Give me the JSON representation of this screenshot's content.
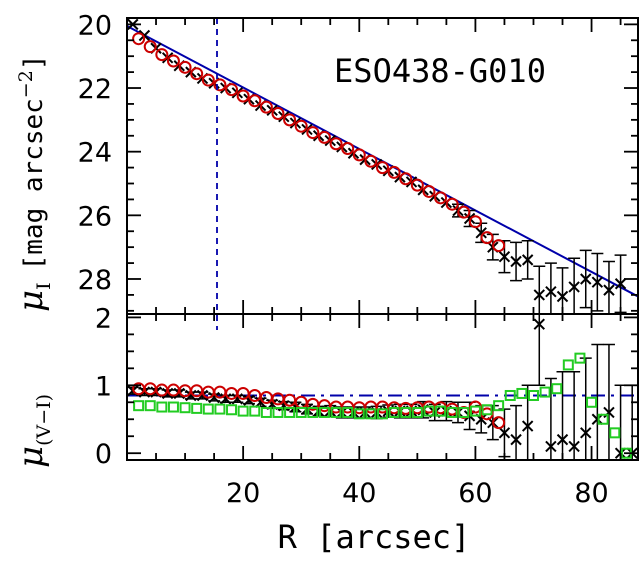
{
  "chart_data": [
    {
      "type": "scatter",
      "panel": "top",
      "annotation": "ESO438-G010",
      "ylabel_symbol": "μ",
      "ylabel_subscript": "I",
      "ylabel_unit": "[mag arcsec",
      "ylabel_unit_exp": "−2",
      "ylabel_unit_close": "]",
      "xlim": [
        0,
        88
      ],
      "ylim": [
        29.1,
        19.8
      ],
      "y_inverted": true,
      "yticks": [
        20,
        22,
        24,
        26,
        28
      ],
      "ytick_labels": [
        "20",
        "22",
        "24",
        "26",
        "28"
      ],
      "fit_line": {
        "x": [
          0,
          88
        ],
        "y": [
          20.05,
          28.55
        ]
      },
      "vertical_marker_x": 15.5,
      "series": [
        {
          "marker": "open-circle",
          "color": "#cc0000",
          "x": [
            2,
            4,
            6,
            8,
            10,
            12,
            14,
            16,
            18,
            20,
            22,
            24,
            26,
            28,
            30,
            32,
            34,
            36,
            38,
            40,
            42,
            44,
            46,
            48,
            50,
            52,
            54,
            56,
            58,
            60,
            62,
            64
          ],
          "y": [
            20.45,
            20.7,
            20.95,
            21.15,
            21.35,
            21.55,
            21.75,
            21.9,
            22.05,
            22.25,
            22.4,
            22.6,
            22.8,
            23.0,
            23.2,
            23.4,
            23.55,
            23.75,
            23.9,
            24.1,
            24.3,
            24.5,
            24.65,
            24.85,
            25.05,
            25.25,
            25.45,
            25.65,
            25.9,
            26.2,
            26.7,
            26.95
          ]
        },
        {
          "marker": "cross",
          "color": "#000000",
          "x": [
            1,
            3,
            5,
            7,
            9,
            11,
            13,
            15,
            17,
            19,
            21,
            23,
            25,
            27,
            29,
            31,
            33,
            35,
            37,
            39,
            41,
            43,
            45,
            47,
            49,
            51,
            53,
            55,
            57,
            59,
            61,
            63,
            65,
            67,
            69,
            71,
            73,
            75,
            77,
            79,
            81,
            83,
            85
          ],
          "y": [
            20.0,
            20.35,
            20.75,
            21.05,
            21.3,
            21.5,
            21.7,
            21.85,
            22.0,
            22.15,
            22.35,
            22.55,
            22.7,
            22.9,
            23.1,
            23.3,
            23.5,
            23.65,
            23.85,
            24.05,
            24.25,
            24.4,
            24.6,
            24.8,
            24.95,
            25.2,
            25.4,
            25.6,
            25.85,
            26.1,
            26.55,
            27.0,
            27.3,
            27.45,
            27.4,
            28.5,
            28.4,
            28.55,
            28.25,
            28.0,
            28.1,
            28.35,
            28.15
          ],
          "yerr": [
            0,
            0,
            0,
            0,
            0,
            0,
            0,
            0,
            0,
            0,
            0,
            0,
            0,
            0,
            0,
            0,
            0,
            0,
            0,
            0,
            0,
            0,
            0,
            0,
            0,
            0,
            0,
            0,
            0.2,
            0.25,
            0.3,
            0.4,
            0.5,
            0.6,
            0.6,
            0.9,
            0.9,
            0.9,
            0.9,
            0.9,
            0.9,
            0.9,
            0.9
          ]
        }
      ]
    },
    {
      "type": "scatter",
      "panel": "bottom",
      "ylabel_symbol": "μ",
      "ylabel_subscript": "(V−I)",
      "xlabel": "R [arcsec]",
      "xlim": [
        0,
        88
      ],
      "ylim": [
        -0.1,
        2.05
      ],
      "yticks": [
        0,
        1,
        2
      ],
      "ytick_labels": [
        "0",
        "1",
        "2"
      ],
      "xticks": [
        20,
        40,
        60,
        80
      ],
      "xtick_labels": [
        "20",
        "40",
        "60",
        "80"
      ],
      "mean_line_y": 0.85,
      "series": [
        {
          "marker": "open-circle",
          "color": "#cc0000",
          "x": [
            2,
            4,
            6,
            8,
            10,
            12,
            14,
            16,
            18,
            20,
            22,
            24,
            26,
            28,
            30,
            32,
            34,
            36,
            38,
            40,
            42,
            44,
            46,
            48,
            50,
            52,
            54,
            56,
            58,
            60,
            62,
            64
          ],
          "y": [
            0.95,
            0.95,
            0.93,
            0.93,
            0.92,
            0.92,
            0.9,
            0.9,
            0.88,
            0.88,
            0.85,
            0.82,
            0.8,
            0.78,
            0.75,
            0.72,
            0.7,
            0.68,
            0.68,
            0.67,
            0.68,
            0.68,
            0.67,
            0.66,
            0.67,
            0.68,
            0.67,
            0.65,
            0.6,
            0.68,
            0.58,
            0.45
          ]
        },
        {
          "marker": "open-square",
          "color": "#22cc22",
          "x": [
            2,
            4,
            6,
            8,
            10,
            12,
            14,
            16,
            18,
            20,
            22,
            24,
            26,
            28,
            30,
            32,
            34,
            36,
            38,
            40,
            42,
            44,
            46,
            48,
            50,
            52,
            54,
            56,
            58,
            60,
            62,
            64,
            66,
            68,
            70,
            72,
            74,
            76,
            78,
            80,
            82,
            84,
            86
          ],
          "y": [
            0.7,
            0.7,
            0.68,
            0.68,
            0.67,
            0.66,
            0.65,
            0.65,
            0.64,
            0.62,
            0.62,
            0.6,
            0.6,
            0.6,
            0.6,
            0.6,
            0.6,
            0.6,
            0.6,
            0.58,
            0.58,
            0.58,
            0.6,
            0.6,
            0.6,
            0.62,
            0.62,
            0.6,
            0.6,
            0.62,
            0.64,
            0.7,
            0.85,
            0.88,
            0.85,
            0.9,
            0.95,
            1.3,
            1.4,
            0.75,
            0.5,
            0.3,
            0.0
          ]
        },
        {
          "marker": "cross",
          "color": "#000000",
          "x": [
            1,
            3,
            5,
            7,
            9,
            11,
            13,
            15,
            17,
            19,
            21,
            23,
            25,
            27,
            29,
            31,
            33,
            35,
            37,
            39,
            41,
            43,
            45,
            47,
            49,
            51,
            53,
            55,
            57,
            59,
            61,
            63,
            65,
            67,
            69,
            71,
            73,
            75,
            77,
            79,
            81,
            83,
            85,
            87
          ],
          "y": [
            0.92,
            0.9,
            0.9,
            0.88,
            0.88,
            0.85,
            0.85,
            0.82,
            0.8,
            0.8,
            0.78,
            0.75,
            0.72,
            0.7,
            0.68,
            0.65,
            0.62,
            0.62,
            0.6,
            0.6,
            0.6,
            0.6,
            0.62,
            0.62,
            0.62,
            0.64,
            0.6,
            0.62,
            0.6,
            0.55,
            0.5,
            0.45,
            0.3,
            0.2,
            0.4,
            1.9,
            0.1,
            0.2,
            0.1,
            0.3,
            0.5,
            0.6,
            0.0,
            0.0
          ],
          "yerr": [
            0.05,
            0.05,
            0.05,
            0.05,
            0.05,
            0.05,
            0.05,
            0.05,
            0.05,
            0.05,
            0.05,
            0.06,
            0.06,
            0.06,
            0.07,
            0.07,
            0.07,
            0.08,
            0.08,
            0.08,
            0.08,
            0.09,
            0.09,
            0.1,
            0.1,
            0.12,
            0.12,
            0.14,
            0.15,
            0.2,
            0.2,
            0.25,
            0.35,
            0.5,
            0.6,
            0.9,
            1.0,
            1.0,
            1.1,
            1.1,
            1.1,
            1.0,
            1.0,
            1.0
          ]
        }
      ]
    }
  ]
}
